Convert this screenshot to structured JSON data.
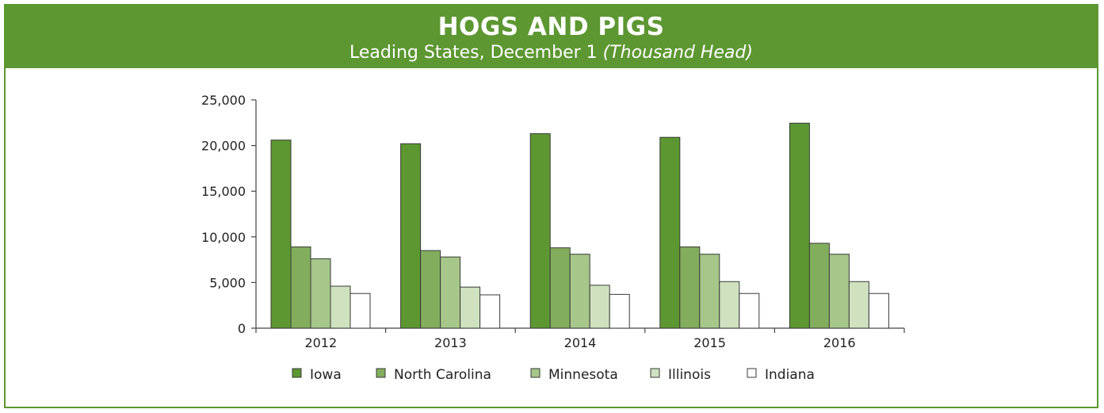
{
  "header": {
    "title": "HOGS AND PIGS",
    "subtitle": "Leading States, December 1",
    "unit": "(Thousand Head)"
  },
  "colors": {
    "brand_green": "#5d9732",
    "series": [
      "#5d9732",
      "#82ad5d",
      "#a6c68a",
      "#cfe1bf",
      "#ffffff"
    ],
    "bar_stroke": "#3a3a3a"
  },
  "chart_data": {
    "type": "bar",
    "title": "HOGS AND PIGS",
    "subtitle": "Leading States, December 1 (Thousand Head)",
    "categories": [
      "2012",
      "2013",
      "2014",
      "2015",
      "2016"
    ],
    "series": [
      {
        "name": "Iowa",
        "values": [
          20600,
          20200,
          21300,
          20900,
          22450
        ]
      },
      {
        "name": "North Carolina",
        "values": [
          8900,
          8500,
          8800,
          8900,
          9300
        ]
      },
      {
        "name": "Minnesota",
        "values": [
          7600,
          7800,
          8100,
          8100,
          8100
        ]
      },
      {
        "name": "Illinois",
        "values": [
          4600,
          4500,
          4700,
          5100,
          5100
        ]
      },
      {
        "name": "Indiana",
        "values": [
          3800,
          3650,
          3700,
          3800,
          3800
        ]
      }
    ],
    "ylim": [
      0,
      25000
    ],
    "yticks": [
      "0",
      "5,000",
      "10,000",
      "15,000",
      "20,000",
      "25,000"
    ],
    "ytick_values": [
      0,
      5000,
      10000,
      15000,
      20000,
      25000
    ],
    "xlabel": "",
    "ylabel": "",
    "grid": false,
    "legend": "bottom"
  }
}
